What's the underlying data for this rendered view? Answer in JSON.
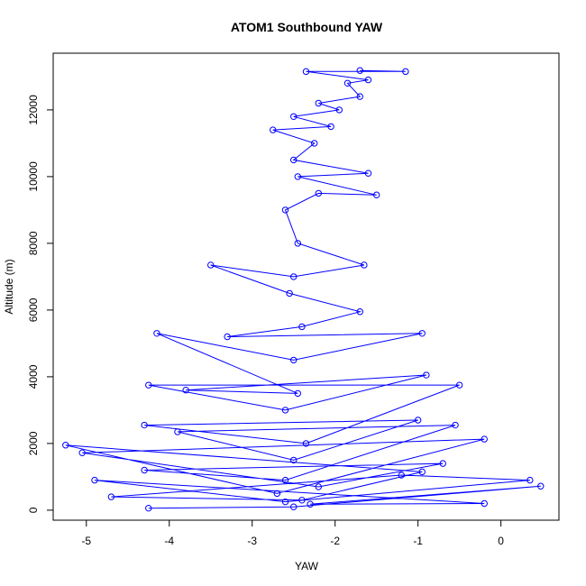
{
  "chart_data": {
    "type": "scatter",
    "title": "ATOM1 Southbound YAW",
    "xlabel": "YAW",
    "ylabel": "Altitude (m)",
    "xlim": [
      -5.4,
      0.7
    ],
    "ylim": [
      -300,
      13700
    ],
    "x_ticks": [
      -5,
      -4,
      -3,
      -2,
      -1,
      0
    ],
    "x_tick_labels": [
      "-5",
      "-4",
      "-3",
      "-2",
      "-1",
      "0"
    ],
    "y_ticks": [
      0,
      2000,
      4000,
      6000,
      8000,
      10000,
      12000
    ],
    "y_tick_labels": [
      "0",
      "2000",
      "4000",
      "6000",
      "8000",
      "10000",
      "12000"
    ],
    "grid": false,
    "legend": "none",
    "point_style": "open-circle",
    "line_connected": true,
    "series_color": "#0000ff",
    "series": [
      {
        "points": [
          [
            -4.25,
            60
          ],
          [
            -2.5,
            100
          ],
          [
            0.48,
            720
          ],
          [
            -2.3,
            180
          ],
          [
            -0.2,
            200
          ],
          [
            -4.9,
            900
          ],
          [
            -2.6,
            250
          ],
          [
            0.35,
            900
          ],
          [
            -1.2,
            1050
          ],
          [
            -4.7,
            400
          ],
          [
            -2.4,
            300
          ],
          [
            -0.95,
            1150
          ],
          [
            -5.25,
            1950
          ],
          [
            -2.7,
            500
          ],
          [
            -0.2,
            2130
          ],
          [
            -5.05,
            1720
          ],
          [
            -2.2,
            700
          ],
          [
            -0.7,
            1400
          ],
          [
            -4.3,
            1200
          ],
          [
            -2.6,
            900
          ],
          [
            -0.55,
            2550
          ],
          [
            -3.9,
            2350
          ],
          [
            -2.5,
            1500
          ],
          [
            -1.0,
            2700
          ],
          [
            -4.3,
            2550
          ],
          [
            -2.35,
            2000
          ],
          [
            -0.5,
            3750
          ],
          [
            -4.25,
            3750
          ],
          [
            -2.6,
            3000
          ],
          [
            -0.9,
            4050
          ],
          [
            -3.8,
            3600
          ],
          [
            -2.45,
            3500
          ],
          [
            -4.15,
            5300
          ],
          [
            -2.5,
            4500
          ],
          [
            -0.95,
            5300
          ],
          [
            -3.3,
            5200
          ],
          [
            -2.4,
            5500
          ],
          [
            -1.7,
            5950
          ],
          [
            -2.55,
            6500
          ],
          [
            -3.5,
            7350
          ],
          [
            -2.5,
            7000
          ],
          [
            -1.65,
            7350
          ],
          [
            -2.45,
            8000
          ],
          [
            -2.6,
            9000
          ],
          [
            -2.2,
            9500
          ],
          [
            -1.5,
            9450
          ],
          [
            -2.45,
            10000
          ],
          [
            -1.6,
            10100
          ],
          [
            -2.5,
            10500
          ],
          [
            -2.25,
            11000
          ],
          [
            -2.75,
            11400
          ],
          [
            -2.05,
            11500
          ],
          [
            -2.5,
            11800
          ],
          [
            -1.95,
            12000
          ],
          [
            -2.2,
            12200
          ],
          [
            -1.7,
            12400
          ],
          [
            -1.85,
            12800
          ],
          [
            -1.6,
            12900
          ],
          [
            -2.35,
            13150
          ],
          [
            -1.15,
            13150
          ],
          [
            -1.7,
            13180
          ]
        ]
      }
    ]
  }
}
